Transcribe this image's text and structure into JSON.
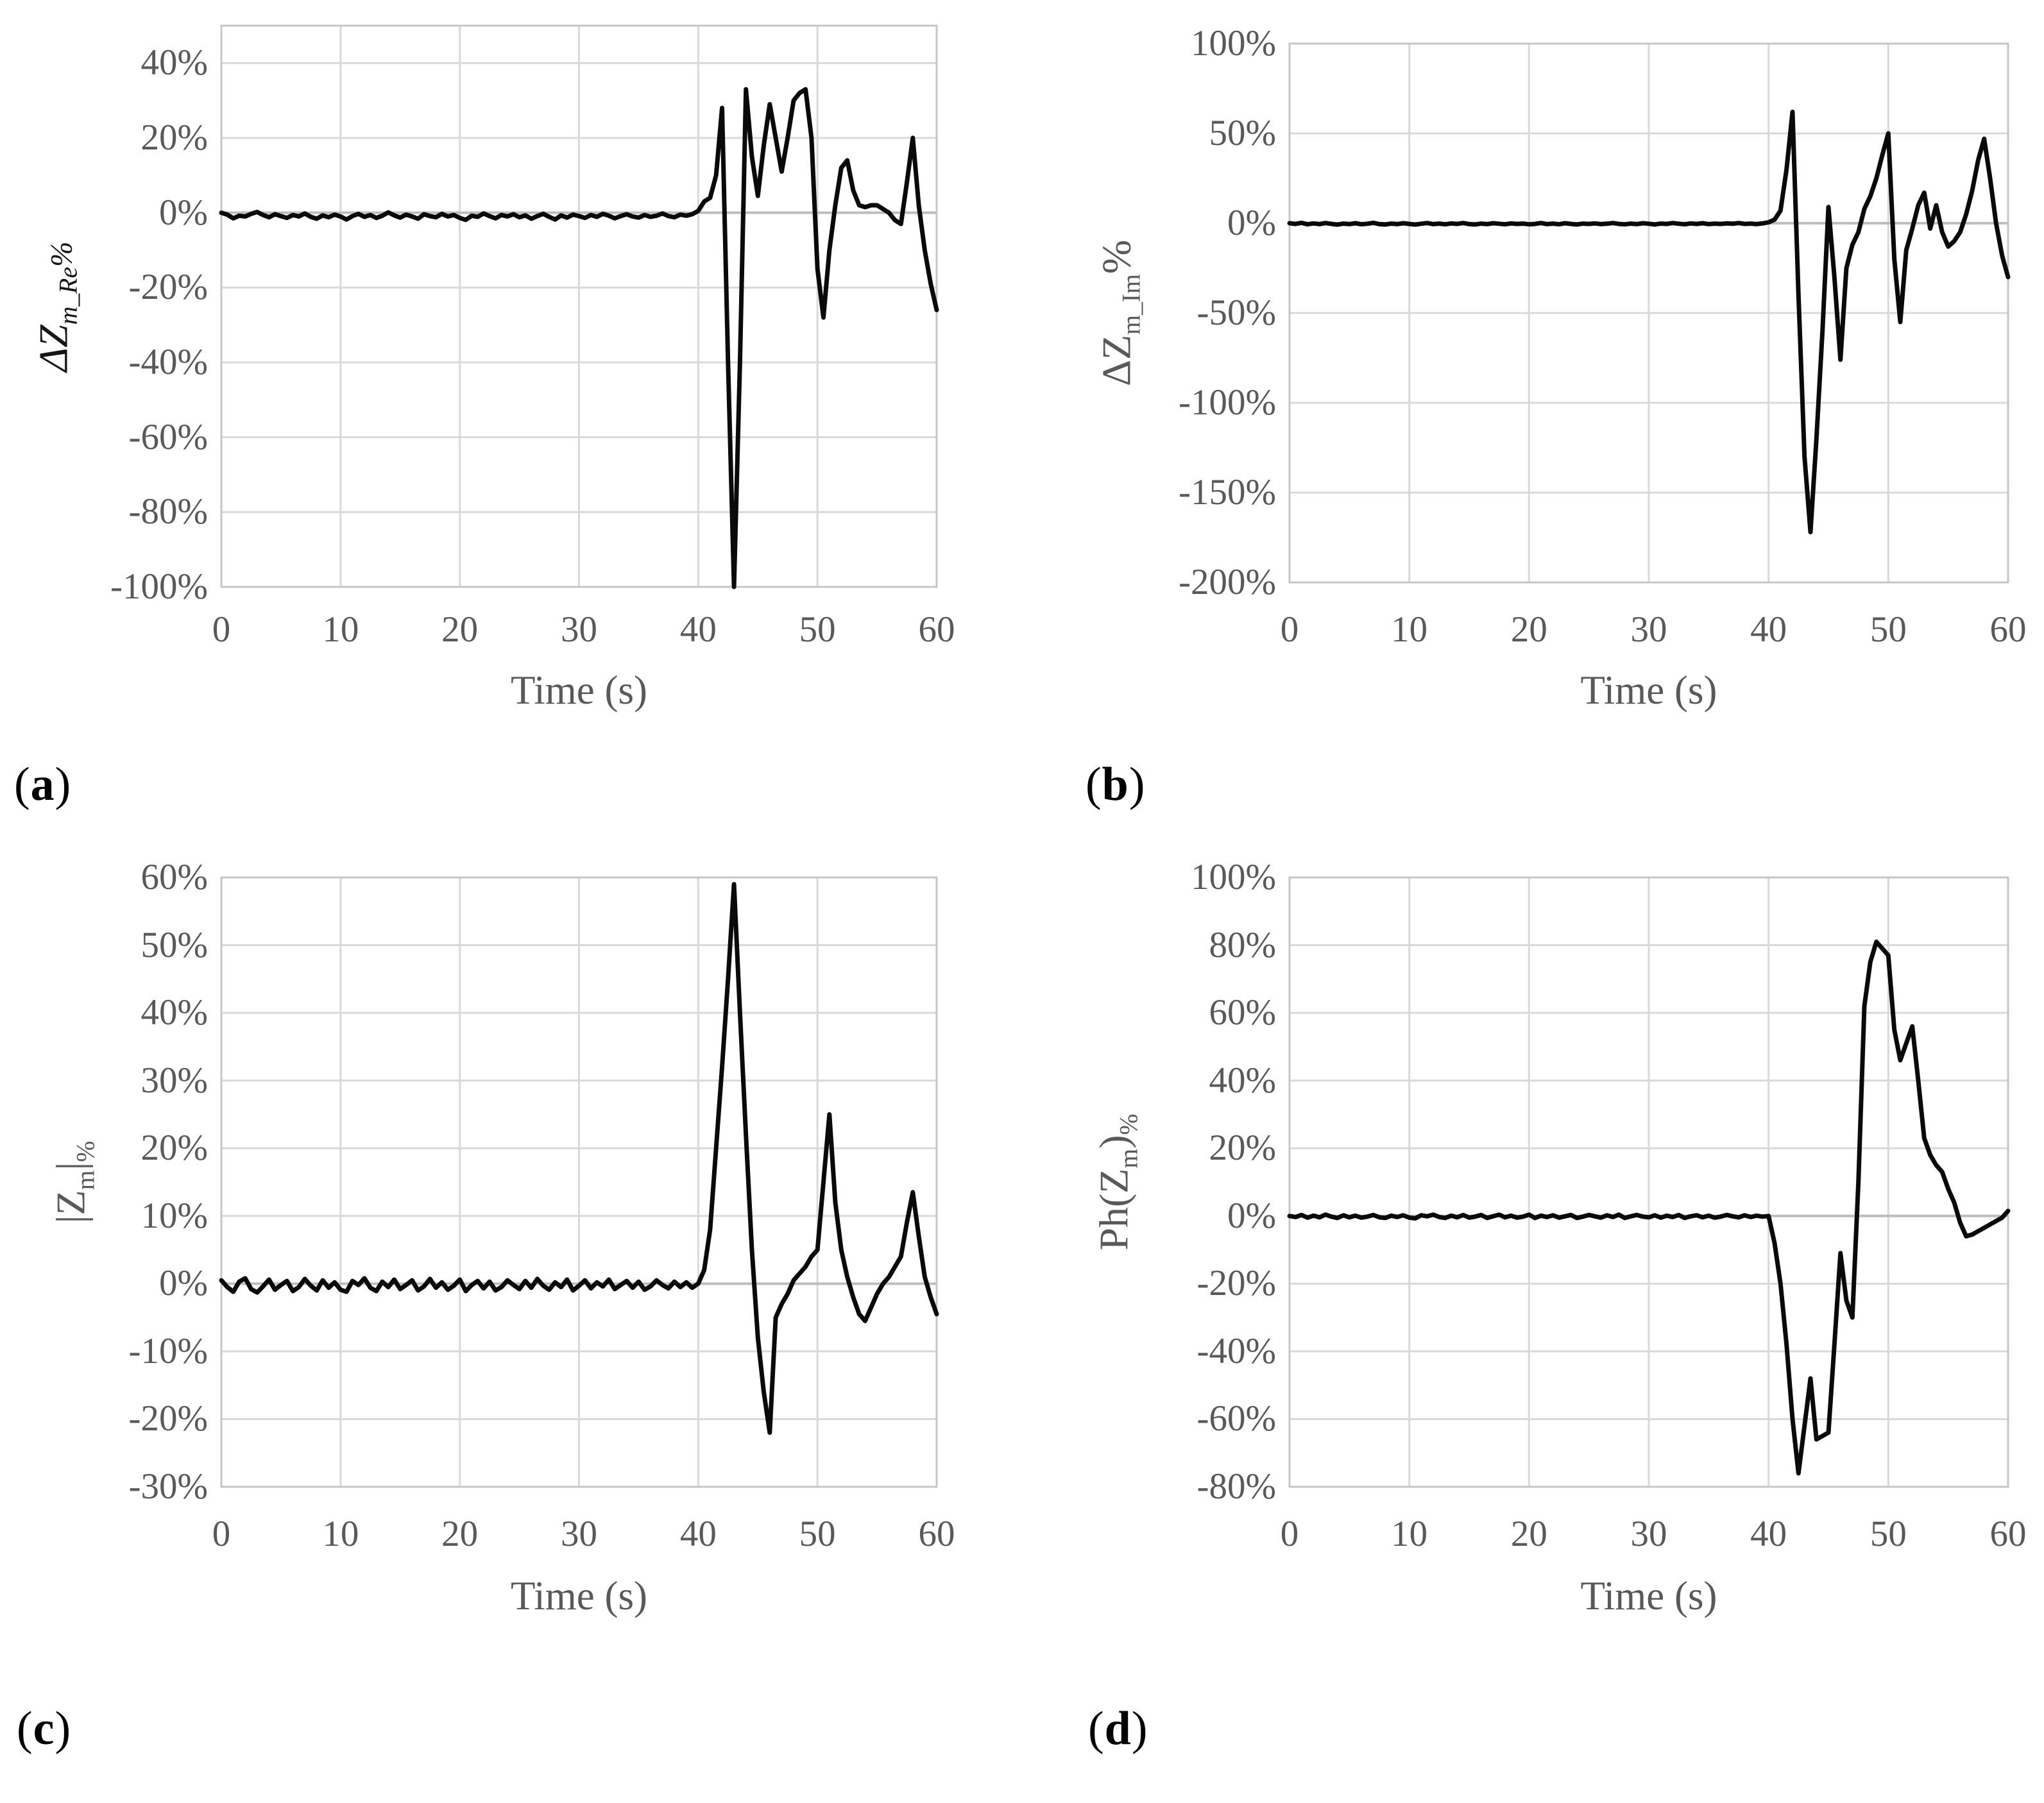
{
  "figure": {
    "background": "#ffffff",
    "colors": {
      "line": "#0a0a0a",
      "gridline": "#d9d9d9",
      "zero_axis": "#bdbdbd",
      "plot_border": "#c6c6c6",
      "tick_text": "#595959",
      "ylabel_a_text": "#161616"
    },
    "shared_xlabel": "Time (s)"
  },
  "chart_data": [
    {
      "id": "a",
      "type": "line",
      "caption": "(a)",
      "emphasis_italic_ylabel": true,
      "ylabel_segments": [
        {
          "text": "ΔZ"
        },
        {
          "text": "m_Re",
          "sub": true
        },
        {
          "text": "%",
          "pct": true
        }
      ],
      "xlabel": "Time (s)",
      "xlim": [
        0,
        60
      ],
      "xticks": [
        0,
        10,
        20,
        30,
        40,
        50,
        60
      ],
      "ylim_edges": [
        -100,
        50
      ],
      "yticks": [
        40,
        20,
        0,
        -20,
        -40,
        -60,
        -80,
        -100
      ],
      "ytick_suffix": "%",
      "grid": true,
      "legend": "none",
      "baseline": {
        "t0": 0,
        "step": 0.5,
        "values": [
          0,
          -0.5,
          -1.5,
          -0.8,
          -1,
          -0.3,
          0.2,
          -0.6,
          -1.2,
          -0.4,
          -0.9,
          -1.4,
          -0.6,
          -1,
          -0.2,
          -1.1,
          -1.6,
          -0.7,
          -1.2,
          -0.5,
          -1,
          -1.8,
          -0.9,
          -0.3,
          -1.1,
          -0.6,
          -1.4,
          -0.8,
          0.1,
          -0.7,
          -1.3,
          -0.5,
          -1,
          -1.6,
          -0.4,
          -0.9,
          -1.2,
          -0.3,
          -1,
          -0.6,
          -1.4,
          -1.9,
          -0.8,
          -1.1,
          -0.2,
          -0.9,
          -1.5,
          -0.6,
          -1,
          -0.4,
          -1.2,
          -0.7,
          -1.6,
          -0.9,
          -0.3,
          -1.1,
          -1.8,
          -0.7,
          -1.3,
          -0.5,
          -0.9,
          -1.4,
          -0.6,
          -1.1,
          -0.3,
          -0.8,
          -1.5,
          -0.9,
          -0.4,
          -1,
          -1.3,
          -0.6,
          -1.1,
          -0.8,
          -0.2,
          -0.9,
          -1.2,
          -0.5,
          -0.8,
          -0.4,
          0.5
        ]
      },
      "spike_points": [
        [
          40.5,
          3
        ],
        [
          41,
          4
        ],
        [
          41.5,
          10
        ],
        [
          42,
          28
        ],
        [
          42.5,
          -40
        ],
        [
          43,
          -100
        ],
        [
          43.5,
          -40
        ],
        [
          44,
          33
        ],
        [
          44.5,
          15
        ],
        [
          45,
          4.5
        ],
        [
          45.5,
          18
        ],
        [
          46,
          29
        ],
        [
          46.5,
          20
        ],
        [
          47,
          11
        ],
        [
          47.5,
          20
        ],
        [
          48,
          30
        ],
        [
          48.5,
          32
        ],
        [
          49,
          33
        ],
        [
          49.5,
          20
        ],
        [
          50,
          -15
        ],
        [
          50.5,
          -28
        ],
        [
          51,
          -10
        ],
        [
          51.5,
          2
        ],
        [
          52,
          12
        ],
        [
          52.5,
          14
        ],
        [
          53,
          6
        ],
        [
          53.5,
          2
        ],
        [
          54,
          1.5
        ],
        [
          54.5,
          2
        ],
        [
          55,
          2
        ],
        [
          55.5,
          1
        ],
        [
          56,
          0
        ],
        [
          56.5,
          -2
        ],
        [
          57,
          -3
        ],
        [
          57.5,
          8
        ],
        [
          58,
          20
        ],
        [
          58.5,
          2
        ],
        [
          59,
          -10
        ],
        [
          59.5,
          -19
        ],
        [
          60,
          -26
        ]
      ]
    },
    {
      "id": "b",
      "type": "line",
      "caption": "(b)",
      "emphasis_italic_ylabel": false,
      "ylabel_segments": [
        {
          "text": "ΔZ"
        },
        {
          "text": "m_Im",
          "sub": true
        },
        {
          "text": "%"
        }
      ],
      "xlabel": "Time (s)",
      "xlim": [
        0,
        60
      ],
      "xticks": [
        0,
        10,
        20,
        30,
        40,
        50,
        60
      ],
      "ylim_edges": [
        -200,
        100
      ],
      "yticks": [
        100,
        50,
        0,
        -50,
        -100,
        -150,
        -200
      ],
      "ytick_suffix": "%",
      "grid": true,
      "legend": "none",
      "baseline": {
        "t0": 0,
        "step": 0.5,
        "values": [
          0,
          -0.4,
          0.2,
          -0.6,
          -0.1,
          -0.5,
          0.1,
          -0.4,
          -0.8,
          -0.2,
          -0.5,
          0,
          -0.6,
          -0.3,
          0.2,
          -0.5,
          -0.7,
          -0.2,
          -0.5,
          0,
          -0.4,
          -0.8,
          -0.3,
          0.1,
          -0.5,
          -0.2,
          -0.6,
          -0.1,
          -0.4,
          0.1,
          -0.5,
          -0.7,
          -0.2,
          -0.5,
          0,
          -0.3,
          -0.6,
          -0.1,
          -0.4,
          -0.2,
          -0.6,
          -0.4,
          0.1,
          -0.5,
          -0.2,
          -0.6,
          0,
          -0.4,
          -0.7,
          -0.2,
          -0.4,
          -0.1,
          -0.5,
          -0.3,
          0.1,
          -0.4,
          -0.6,
          -0.2,
          -0.5,
          0,
          -0.3,
          -0.7,
          -0.2,
          -0.4,
          0.1,
          -0.3,
          -0.6,
          -0.1,
          -0.4,
          0,
          -0.5,
          -0.2,
          -0.4,
          -0.1,
          -0.3,
          0.1,
          -0.4,
          -0.2,
          -0.5,
          -0.1,
          0.5
        ]
      },
      "spike_points": [
        [
          40.5,
          2
        ],
        [
          41,
          7
        ],
        [
          41.5,
          30
        ],
        [
          42,
          62
        ],
        [
          42.5,
          -40
        ],
        [
          43,
          -130
        ],
        [
          43.5,
          -172
        ],
        [
          44,
          -120
        ],
        [
          44.5,
          -60
        ],
        [
          45,
          9
        ],
        [
          45.5,
          -30
        ],
        [
          46,
          -76
        ],
        [
          46.5,
          -25
        ],
        [
          47,
          -12
        ],
        [
          47.5,
          -5
        ],
        [
          48,
          8
        ],
        [
          48.5,
          15
        ],
        [
          49,
          25
        ],
        [
          49.5,
          38
        ],
        [
          50,
          50
        ],
        [
          50.5,
          -20
        ],
        [
          51,
          -55
        ],
        [
          51.5,
          -15
        ],
        [
          52,
          -3
        ],
        [
          52.5,
          10
        ],
        [
          53,
          17
        ],
        [
          53.5,
          -3
        ],
        [
          54,
          10
        ],
        [
          54.5,
          -5
        ],
        [
          55,
          -13
        ],
        [
          55.5,
          -10
        ],
        [
          56,
          -5
        ],
        [
          56.5,
          5
        ],
        [
          57,
          18
        ],
        [
          57.5,
          35
        ],
        [
          58,
          47
        ],
        [
          58.5,
          25
        ],
        [
          59,
          0
        ],
        [
          59.5,
          -18
        ],
        [
          60,
          -30
        ]
      ]
    },
    {
      "id": "c",
      "type": "line",
      "caption": "(c)",
      "emphasis_italic_ylabel": false,
      "ylabel_segments": [
        {
          "text": "|Z"
        },
        {
          "text": "m",
          "sub": true
        },
        {
          "text": "|"
        },
        {
          "text": "%",
          "sub": true
        }
      ],
      "xlabel": "Time (s)",
      "xlim": [
        0,
        60
      ],
      "xticks": [
        0,
        10,
        20,
        30,
        40,
        50,
        60
      ],
      "ylim_edges": [
        -30,
        60
      ],
      "yticks": [
        60,
        50,
        40,
        30,
        20,
        10,
        0,
        -10,
        -20,
        -30
      ],
      "ytick_suffix": "%",
      "grid": true,
      "legend": "none",
      "baseline": {
        "t0": 0,
        "step": 0.5,
        "values": [
          0.5,
          -0.5,
          -1.2,
          0.3,
          0.8,
          -0.8,
          -1.3,
          -0.4,
          0.6,
          -0.9,
          -0.2,
          0.4,
          -1.1,
          -0.5,
          0.7,
          -0.3,
          -1,
          0.5,
          -0.6,
          0.2,
          -0.9,
          -1.2,
          0.4,
          -0.2,
          0.8,
          -0.6,
          -1.1,
          0.3,
          -0.5,
          0.6,
          -0.8,
          -0.2,
          0.5,
          -1,
          -0.4,
          0.7,
          -0.6,
          0.2,
          -0.9,
          -0.3,
          0.6,
          -1.1,
          -0.2,
          0.4,
          -0.7,
          0.3,
          -1,
          -0.5,
          0.5,
          -0.2,
          -0.8,
          0.4,
          -0.6,
          0.7,
          -0.3,
          -0.9,
          0.2,
          -0.5,
          0.6,
          -1,
          -0.3,
          0.5,
          -0.7,
          0.2,
          -0.4,
          0.6,
          -0.8,
          -0.2,
          0.4,
          -0.6,
          0.3,
          -0.9,
          -0.4,
          0.5,
          -0.2,
          -0.7,
          0.3,
          -0.5,
          0.2,
          -0.6,
          0
        ]
      },
      "spike_points": [
        [
          40.5,
          2
        ],
        [
          41,
          8
        ],
        [
          41.5,
          20
        ],
        [
          42,
          32
        ],
        [
          42.5,
          45
        ],
        [
          43,
          59
        ],
        [
          43.5,
          40
        ],
        [
          44,
          22
        ],
        [
          44.5,
          5
        ],
        [
          45,
          -8
        ],
        [
          45.5,
          -16
        ],
        [
          46,
          -22
        ],
        [
          46.5,
          -5
        ],
        [
          47,
          -3
        ],
        [
          47.5,
          -1.5
        ],
        [
          48,
          0.5
        ],
        [
          48.5,
          1.5
        ],
        [
          49,
          2.5
        ],
        [
          49.5,
          4
        ],
        [
          50,
          5
        ],
        [
          50.5,
          15
        ],
        [
          51,
          25
        ],
        [
          51.5,
          12
        ],
        [
          52,
          5
        ],
        [
          52.5,
          1
        ],
        [
          53,
          -2
        ],
        [
          53.5,
          -4.5
        ],
        [
          54,
          -5.5
        ],
        [
          54.5,
          -3.5
        ],
        [
          55,
          -1.5
        ],
        [
          55.5,
          0
        ],
        [
          56,
          1
        ],
        [
          56.5,
          2.5
        ],
        [
          57,
          4
        ],
        [
          57.5,
          9
        ],
        [
          58,
          13.5
        ],
        [
          58.5,
          7
        ],
        [
          59,
          1
        ],
        [
          59.5,
          -2
        ],
        [
          60,
          -4.5
        ]
      ]
    },
    {
      "id": "d",
      "type": "line",
      "caption": "(d)",
      "emphasis_italic_ylabel": false,
      "ylabel_segments": [
        {
          "text": "Ph(Z"
        },
        {
          "text": "m",
          "sub": true
        },
        {
          "text": ")"
        },
        {
          "text": "%",
          "sub": true
        }
      ],
      "xlabel": "Time (s)",
      "xlim": [
        0,
        60
      ],
      "xticks": [
        0,
        10,
        20,
        30,
        40,
        50,
        60
      ],
      "ylim_edges": [
        -80,
        100
      ],
      "yticks": [
        100,
        80,
        60,
        40,
        20,
        0,
        -20,
        -40,
        -60,
        -80
      ],
      "ytick_suffix": "%",
      "grid": true,
      "legend": "none",
      "baseline": {
        "t0": 0,
        "step": 0.5,
        "values": [
          0,
          -0.3,
          0.3,
          -0.5,
          0.1,
          -0.4,
          0.4,
          -0.2,
          -0.6,
          0.2,
          -0.4,
          0.1,
          -0.5,
          -0.2,
          0.3,
          -0.4,
          -0.6,
          0.1,
          -0.3,
          0.2,
          -0.5,
          -0.7,
          0.2,
          -0.1,
          0.4,
          -0.3,
          -0.6,
          0.1,
          -0.4,
          0.3,
          -0.5,
          -0.2,
          0.3,
          -0.6,
          -0.1,
          0.4,
          -0.4,
          0.1,
          -0.5,
          -0.2,
          0.4,
          -0.6,
          0.1,
          -0.3,
          0.2,
          -0.5,
          -0.1,
          0.3,
          -0.6,
          -0.2,
          0.3,
          -0.1,
          -0.5,
          0.2,
          -0.3,
          0.4,
          -0.6,
          -0.1,
          0.3,
          -0.2,
          -0.4,
          0.2,
          -0.5,
          0.1,
          -0.3,
          0.3,
          -0.6,
          -0.1,
          0.2,
          -0.4,
          0.1,
          -0.5,
          -0.2,
          0.3,
          -0.1,
          -0.4,
          0.2,
          -0.3,
          0.1,
          -0.2,
          0
        ]
      },
      "spike_points": [
        [
          40.5,
          -8
        ],
        [
          41,
          -20
        ],
        [
          41.5,
          -38
        ],
        [
          42,
          -60
        ],
        [
          42.5,
          -76
        ],
        [
          43,
          -62
        ],
        [
          43.5,
          -48
        ],
        [
          44,
          -66
        ],
        [
          44.5,
          -65
        ],
        [
          45,
          -64
        ],
        [
          45.5,
          -38
        ],
        [
          46,
          -11
        ],
        [
          46.5,
          -25
        ],
        [
          47,
          -30
        ],
        [
          47.5,
          10
        ],
        [
          48,
          62
        ],
        [
          48.5,
          75
        ],
        [
          49,
          81
        ],
        [
          49.5,
          79
        ],
        [
          50,
          77
        ],
        [
          50.5,
          55
        ],
        [
          51,
          46
        ],
        [
          51.5,
          51
        ],
        [
          52,
          56
        ],
        [
          52.5,
          40
        ],
        [
          53,
          23
        ],
        [
          53.5,
          18
        ],
        [
          54,
          15
        ],
        [
          54.5,
          13
        ],
        [
          55,
          8
        ],
        [
          55.5,
          4
        ],
        [
          56,
          -2
        ],
        [
          56.5,
          -6
        ],
        [
          57,
          -5.5
        ],
        [
          57.5,
          -4.5
        ],
        [
          58,
          -3.5
        ],
        [
          58.5,
          -2.5
        ],
        [
          59,
          -1.5
        ],
        [
          59.5,
          -0.5
        ],
        [
          60,
          1.5
        ]
      ]
    }
  ]
}
